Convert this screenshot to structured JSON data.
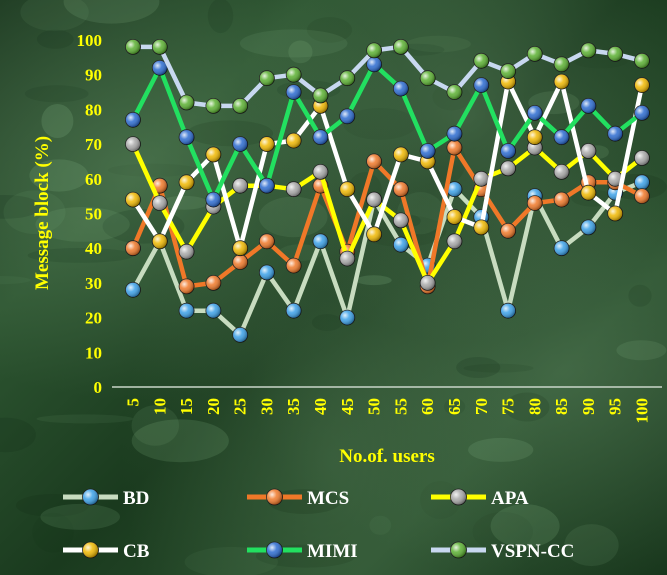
{
  "chart_data": {
    "type": "line",
    "title": "",
    "xlabel": "No.of. users",
    "ylabel": "Message block (%)",
    "ylim": [
      0,
      100
    ],
    "yticks": [
      0,
      10,
      20,
      30,
      40,
      50,
      60,
      70,
      80,
      90,
      100
    ],
    "categories": [
      "5",
      "10",
      "15",
      "20",
      "25",
      "30",
      "35",
      "40",
      "45",
      "50",
      "55",
      "60",
      "65",
      "70",
      "75",
      "80",
      "85",
      "90",
      "95",
      "100"
    ],
    "grid": false,
    "legend_position": "bottom",
    "series": [
      {
        "name": "BD",
        "color": "#c8dcc0",
        "marker_color": "#3aa0e8",
        "values": [
          28,
          42,
          22,
          22,
          15,
          33,
          22,
          42,
          20,
          54,
          41,
          35,
          57,
          49,
          22,
          55,
          40,
          46,
          56,
          59
        ]
      },
      {
        "name": "MCS",
        "color": "#f07828",
        "marker_color": "#f07828",
        "values": [
          40,
          58,
          29,
          30,
          36,
          42,
          35,
          58,
          39,
          65,
          57,
          29,
          69,
          57,
          45,
          53,
          54,
          59,
          59,
          55
        ]
      },
      {
        "name": "APA",
        "color": "#ffff00",
        "marker_color": "#a8a8a8",
        "values": [
          70,
          53,
          39,
          52,
          58,
          58,
          57,
          62,
          37,
          54,
          48,
          30,
          42,
          60,
          63,
          69,
          62,
          68,
          60,
          66
        ]
      },
      {
        "name": "CB",
        "color": "#ffffff",
        "marker_color": "#f0b800",
        "values": [
          54,
          42,
          59,
          67,
          40,
          70,
          71,
          81,
          57,
          44,
          67,
          65,
          49,
          46,
          88,
          72,
          88,
          56,
          50,
          87
        ]
      },
      {
        "name": "MIMI",
        "color": "#22e060",
        "marker_color": "#2a6ad0",
        "values": [
          77,
          92,
          72,
          54,
          70,
          58,
          85,
          72,
          78,
          93,
          86,
          68,
          73,
          87,
          68,
          79,
          72,
          81,
          73,
          79
        ]
      },
      {
        "name": "VSPN-CC",
        "color": "#c8d8f0",
        "marker_color": "#5ab030",
        "values": [
          98,
          98,
          82,
          81,
          81,
          89,
          90,
          84,
          89,
          97,
          98,
          89,
          85,
          94,
          91,
          96,
          93,
          97,
          96,
          94
        ]
      }
    ]
  }
}
